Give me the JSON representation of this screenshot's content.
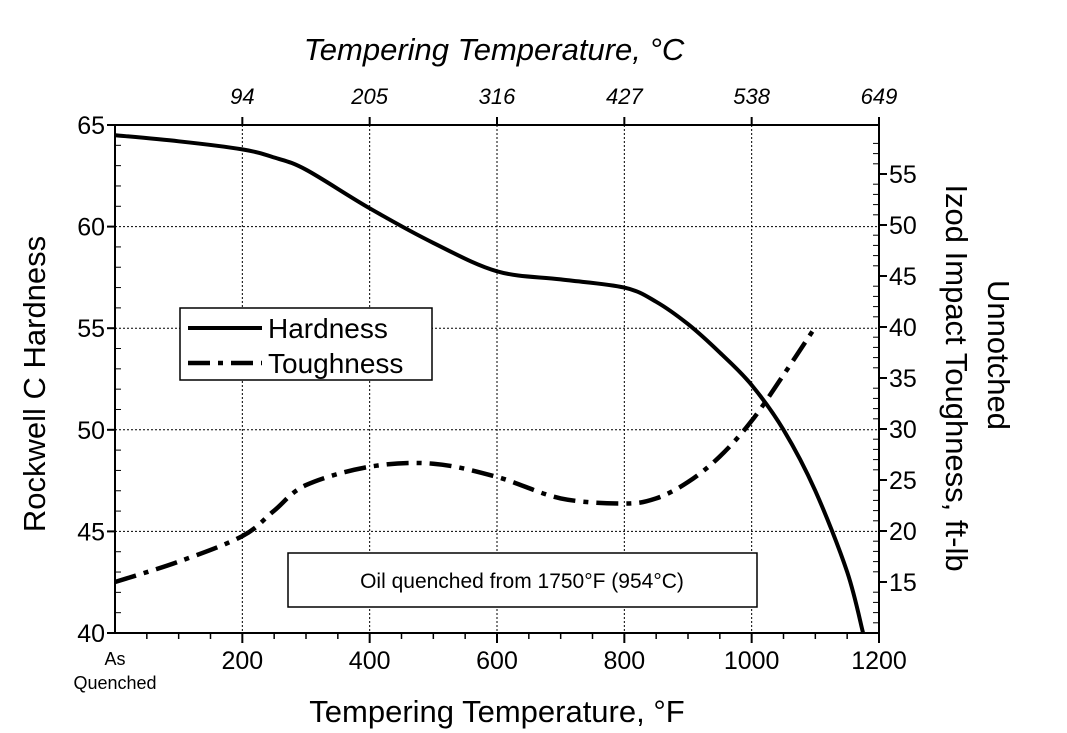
{
  "chart_data": {
    "type": "line",
    "x_axis": {
      "label": "Tempering Temperature, °F",
      "range": [
        0,
        1200
      ],
      "ticks": [
        200,
        400,
        600,
        800,
        1000,
        1200
      ],
      "origin_label_line1": "As",
      "origin_label_line2": "Quenched"
    },
    "x2_axis": {
      "label": "Tempering Temperature, °C",
      "ticks": [
        {
          "f": 200,
          "label": "94"
        },
        {
          "f": 400,
          "label": "205"
        },
        {
          "f": 600,
          "label": "316"
        },
        {
          "f": 800,
          "label": "427"
        },
        {
          "f": 1000,
          "label": "538"
        },
        {
          "f": 1200,
          "label": "649"
        }
      ]
    },
    "y_axis": {
      "label": "Rockwell C Hardness",
      "range": [
        40,
        65
      ],
      "ticks": [
        40,
        45,
        50,
        55,
        60,
        65
      ]
    },
    "y2_axis": {
      "label_line1": "Unnotched",
      "label_line2": "Izod Impact Toughness, ft-lb",
      "ticks": [
        15,
        20,
        25,
        30,
        35,
        40,
        45,
        50,
        55
      ]
    },
    "grid": true,
    "legend": {
      "placement": "middle-left",
      "entries": [
        {
          "name": "Hardness",
          "style": "solid"
        },
        {
          "name": "Toughness",
          "style": "dash-dot"
        }
      ]
    },
    "annotation": "Oil quenched from 1750°F (954°C)",
    "series": [
      {
        "name": "Hardness",
        "axis": "left",
        "style": "solid",
        "x": [
          0,
          100,
          200,
          250,
          300,
          400,
          500,
          600,
          700,
          800,
          850,
          900,
          950,
          1000,
          1050,
          1100,
          1150,
          1175
        ],
        "values": [
          64.5,
          64.2,
          63.8,
          63.4,
          62.8,
          60.9,
          59.2,
          57.8,
          57.4,
          57.0,
          56.3,
          55.2,
          53.8,
          52.2,
          50.0,
          47.0,
          43.0,
          40.0
        ]
      },
      {
        "name": "Toughness",
        "axis": "right",
        "style": "dash-dot",
        "x": [
          0,
          100,
          200,
          250,
          300,
          400,
          500,
          600,
          700,
          800,
          850,
          900,
          950,
          1000,
          1050,
          1100
        ],
        "values": [
          15,
          17,
          19.5,
          22,
          24.5,
          26.3,
          26.6,
          25.3,
          23.2,
          22.7,
          23.2,
          24.8,
          27.3,
          30.8,
          35.3,
          40.0
        ]
      }
    ]
  }
}
